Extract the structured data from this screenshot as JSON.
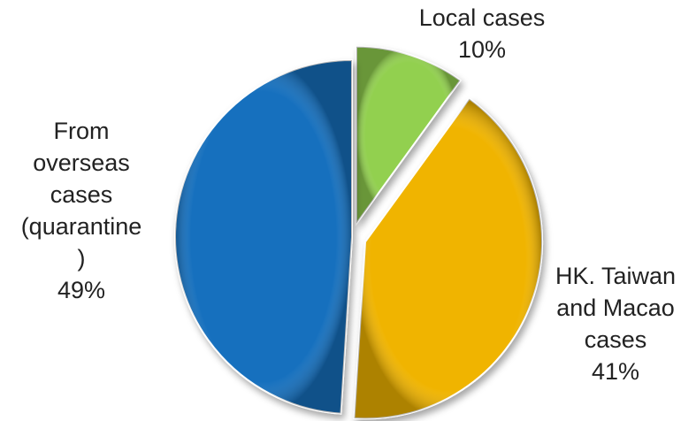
{
  "chart_data": {
    "type": "pie",
    "title": "",
    "slices": [
      {
        "name": "Local cases",
        "label_lines": [
          "Local cases"
        ],
        "value": 10,
        "value_label": "10%",
        "color": "#92d050",
        "exploded": true
      },
      {
        "name": "HK. Taiwan and Macao cases",
        "label_lines": [
          "HK. Taiwan",
          "and Macao",
          "cases"
        ],
        "value": 41,
        "value_label": "41%",
        "color": "#f0b400",
        "exploded": true
      },
      {
        "name": "From overseas cases (quarantine)",
        "label_lines": [
          "From",
          "overseas",
          "cases",
          "(quarantine",
          ")"
        ],
        "value": 49,
        "value_label": "49%",
        "color": "#1570be",
        "exploded": false
      }
    ],
    "legend": "none",
    "start_angle": "top, clockwise"
  }
}
